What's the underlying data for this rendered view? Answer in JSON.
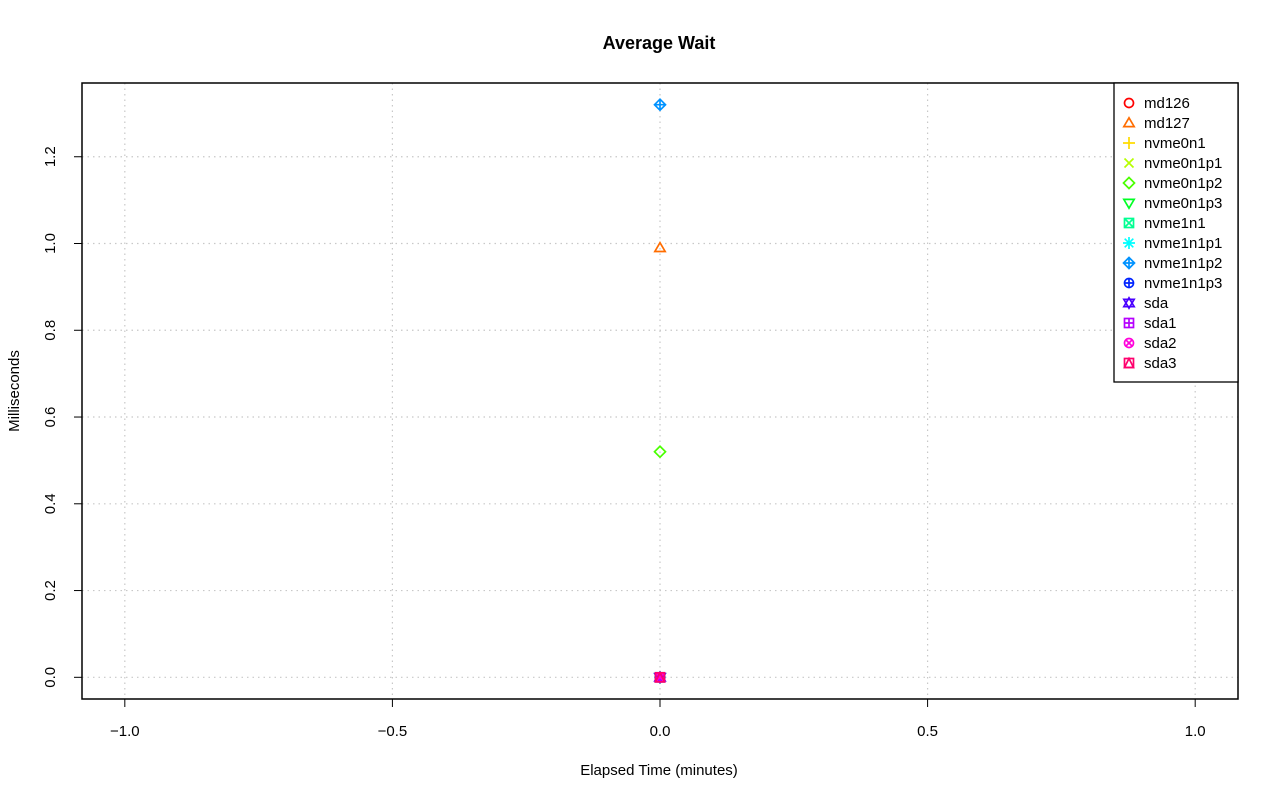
{
  "chart_data": {
    "type": "scatter",
    "title": "Average Wait",
    "xlabel": "Elapsed Time (minutes)",
    "ylabel": "Milliseconds",
    "xlim": [
      -1.08,
      1.08
    ],
    "ylim": [
      -0.05,
      1.37
    ],
    "xticks": [
      -1.0,
      -0.5,
      0.0,
      0.5,
      1.0
    ],
    "xtick_labels": [
      "−1.0",
      "−0.5",
      "0.0",
      "0.5",
      "1.0"
    ],
    "yticks": [
      0.0,
      0.2,
      0.4,
      0.6,
      0.8,
      1.0,
      1.2
    ],
    "ytick_labels": [
      "0.0",
      "0.2",
      "0.4",
      "0.6",
      "0.8",
      "1.0",
      "1.2"
    ],
    "grid": true,
    "legend_position": "top-right",
    "series": [
      {
        "name": "md126",
        "color": "#ff0000",
        "marker": "circle",
        "x": [
          0.0
        ],
        "y": [
          0.0
        ]
      },
      {
        "name": "md127",
        "color": "#ff6d00",
        "marker": "triangle-up",
        "x": [
          0.0
        ],
        "y": [
          0.99
        ]
      },
      {
        "name": "nvme0n1",
        "color": "#ffdb00",
        "marker": "plus",
        "x": [
          0.0
        ],
        "y": [
          0.0
        ]
      },
      {
        "name": "nvme0n1p1",
        "color": "#b6ff00",
        "marker": "cross",
        "x": [
          0.0
        ],
        "y": [
          0.0
        ]
      },
      {
        "name": "nvme0n1p2",
        "color": "#49ff00",
        "marker": "diamond",
        "x": [
          0.0
        ],
        "y": [
          0.52
        ]
      },
      {
        "name": "nvme0n1p3",
        "color": "#00ff24",
        "marker": "triangle-down",
        "x": [
          0.0
        ],
        "y": [
          0.0
        ]
      },
      {
        "name": "nvme1n1",
        "color": "#00ff92",
        "marker": "square-cross",
        "x": [
          0.0
        ],
        "y": [
          0.0
        ]
      },
      {
        "name": "nvme1n1p1",
        "color": "#00ffff",
        "marker": "asterisk",
        "x": [
          0.0
        ],
        "y": [
          0.0
        ]
      },
      {
        "name": "nvme1n1p2",
        "color": "#0092ff",
        "marker": "diamond-plus",
        "x": [
          0.0
        ],
        "y": [
          1.32
        ]
      },
      {
        "name": "nvme1n1p3",
        "color": "#0024ff",
        "marker": "circle-plus",
        "x": [
          0.0
        ],
        "y": [
          0.0
        ]
      },
      {
        "name": "sda",
        "color": "#4900ff",
        "marker": "star-of-david",
        "x": [
          0.0
        ],
        "y": [
          0.0
        ]
      },
      {
        "name": "sda1",
        "color": "#b600ff",
        "marker": "square-plus",
        "x": [
          0.0
        ],
        "y": [
          0.0
        ]
      },
      {
        "name": "sda2",
        "color": "#ff00db",
        "marker": "circle-cross",
        "x": [
          0.0
        ],
        "y": [
          0.0
        ]
      },
      {
        "name": "sda3",
        "color": "#ff006d",
        "marker": "square-triangle",
        "x": [
          0.0
        ],
        "y": [
          0.0
        ]
      }
    ]
  }
}
